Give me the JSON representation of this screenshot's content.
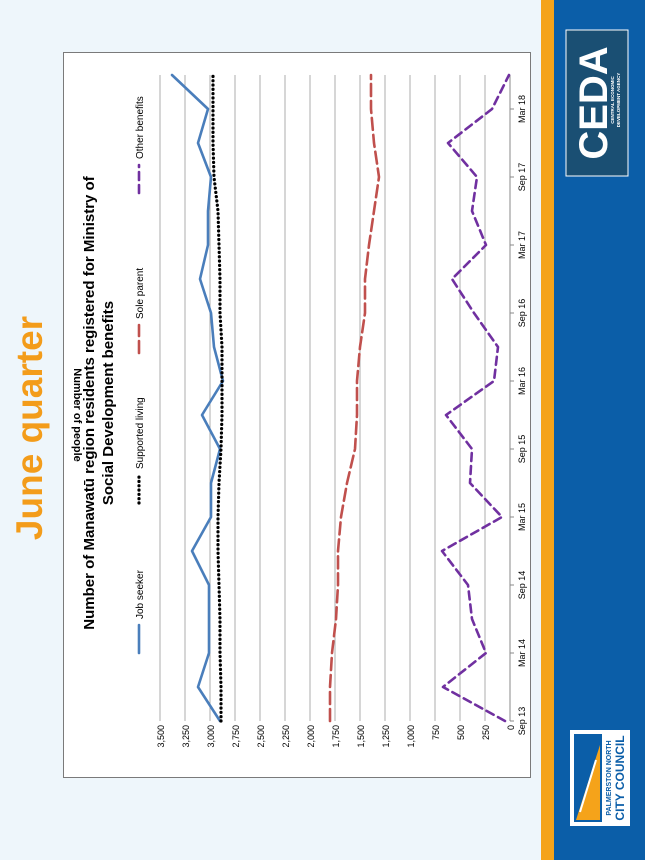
{
  "slide": {
    "heading": "June quarter",
    "colors": {
      "heading": "#f39c1a",
      "orange_band": "#f5a31a",
      "blue_band": "#0b5ea8"
    }
  },
  "logos": {
    "ceda": {
      "mark": "CEDA",
      "tagline_1": "CENTRAL ECONOMIC",
      "tagline_2": "DEVELOPMENT AGENCY"
    },
    "council": {
      "line_1": "PALMERSTON NORTH",
      "line_2": "CITY COUNCIL"
    }
  },
  "chart_data": {
    "type": "line",
    "title_line_1": "Number of Manawatū region residents registered for Ministry of",
    "title_line_2": "Social Development benefits",
    "ylabel": "Number of people",
    "xlabel": "",
    "ylim": [
      0,
      3500
    ],
    "y_ticks": [
      0,
      250,
      500,
      750,
      1000,
      1250,
      1500,
      1750,
      2000,
      2250,
      2500,
      2750,
      3000,
      3250,
      3500
    ],
    "y_tick_labels": [
      "0",
      "250",
      "500",
      "750",
      "1,000",
      "1,250",
      "1,500",
      "1,750",
      "2,000",
      "2,250",
      "2,500",
      "2,750",
      "3,000",
      "3,250",
      "3,500"
    ],
    "grid": true,
    "legend_position": "top",
    "x_tick_labels": [
      "Sep 13",
      "Mar 14",
      "Sep 14",
      "Mar 15",
      "Sep 15",
      "Mar 16",
      "Sep 16",
      "Mar 17",
      "Sep 17",
      "Mar 18"
    ],
    "x": [
      "Sep 13",
      "Dec 13",
      "Mar 14",
      "Jun 14",
      "Sep 14",
      "Dec 14",
      "Mar 15",
      "Jun 15",
      "Sep 15",
      "Dec 15",
      "Mar 16",
      "Jun 16",
      "Sep 16",
      "Dec 16",
      "Mar 17",
      "Jun 17",
      "Sep 17",
      "Dec 17",
      "Mar 18",
      "Jun 18"
    ],
    "series": [
      {
        "name": "Job seeker",
        "color": "#4a7ebb",
        "dash": "solid",
        "values": [
          2900,
          3120,
          3010,
          3010,
          3010,
          3180,
          2990,
          2990,
          2900,
          3080,
          2870,
          2960,
          2990,
          3100,
          3020,
          3020,
          2990,
          3120,
          3020,
          3380
        ]
      },
      {
        "name": "Supported living",
        "color": "#000000",
        "dash": "dot",
        "values": [
          2890,
          2890,
          2900,
          2900,
          2910,
          2920,
          2920,
          2910,
          2890,
          2880,
          2880,
          2880,
          2900,
          2900,
          2910,
          2920,
          2960,
          2970,
          2970,
          2970
        ]
      },
      {
        "name": "Sole parent",
        "color": "#c0504d",
        "dash": "dash",
        "values": [
          1800,
          1800,
          1780,
          1740,
          1720,
          1720,
          1690,
          1630,
          1550,
          1530,
          1530,
          1500,
          1450,
          1450,
          1410,
          1360,
          1310,
          1360,
          1390,
          1390
        ]
      },
      {
        "name": "Other benefits",
        "color": "#7030a0",
        "dash": "longdash",
        "values": [
          50,
          670,
          240,
          380,
          420,
          680,
          80,
          400,
          380,
          640,
          160,
          120,
          360,
          580,
          240,
          380,
          330,
          620,
          180,
          10
        ]
      }
    ]
  }
}
